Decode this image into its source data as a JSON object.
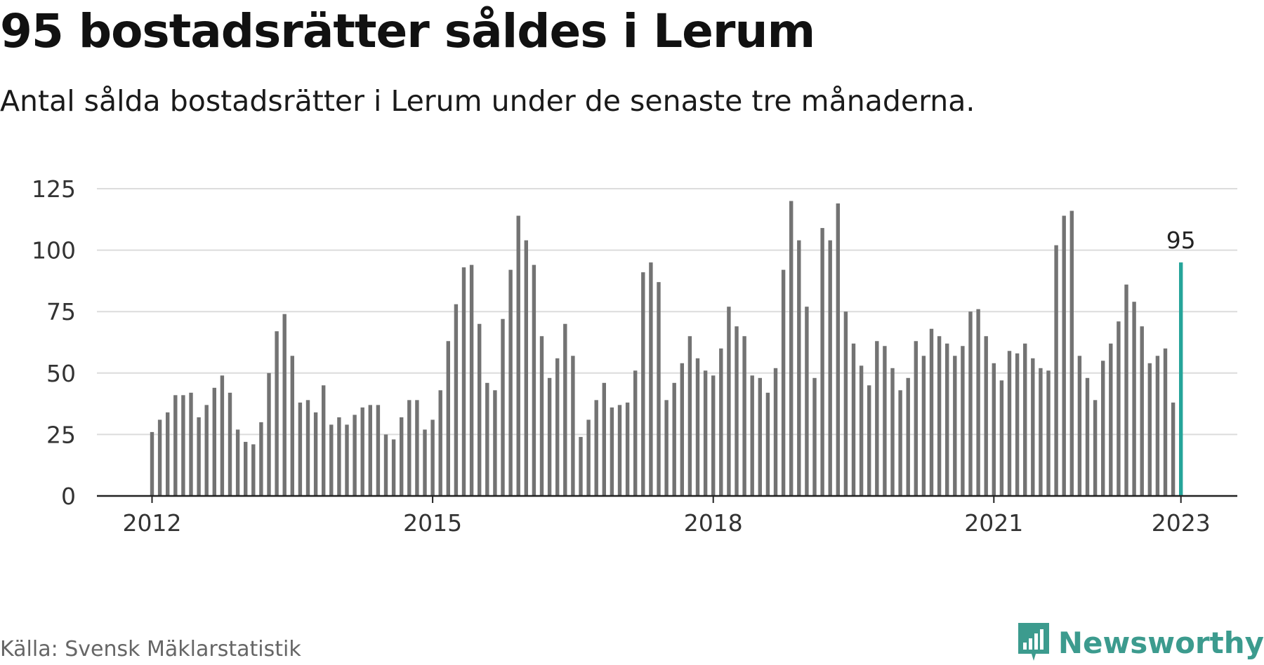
{
  "title": "95 bostadsrätter såldes i Lerum",
  "subtitle": "Antal sålda bostadsrätter i Lerum under de senaste tre månaderna.",
  "source": "Källa: Svensk Mäklarstatistik",
  "brand": {
    "name": "Newsworthy",
    "icon": "newsworthy-logo-icon"
  },
  "colors": {
    "bar": "#737373",
    "highlight": "#26a59a",
    "grid": "#dcdcdc",
    "axis": "#222222",
    "brand": "#3c9b8e"
  },
  "chart_data": {
    "type": "bar",
    "x_start": "2012-01",
    "x_ticks": [
      "2012",
      "2015",
      "2018",
      "2021",
      "2023"
    ],
    "y_ticks": [
      "0",
      "25",
      "50",
      "75",
      "100",
      "125"
    ],
    "ylim": [
      0,
      125
    ],
    "grid": true,
    "annotation": "95",
    "values": [
      26,
      31,
      34,
      41,
      41,
      42,
      32,
      37,
      44,
      49,
      42,
      27,
      22,
      21,
      30,
      50,
      67,
      74,
      57,
      38,
      39,
      34,
      45,
      29,
      32,
      29,
      33,
      36,
      37,
      37,
      25,
      23,
      32,
      39,
      39,
      27,
      31,
      43,
      63,
      78,
      93,
      94,
      70,
      46,
      43,
      72,
      92,
      114,
      104,
      94,
      65,
      48,
      56,
      70,
      57,
      24,
      31,
      39,
      46,
      36,
      37,
      38,
      51,
      91,
      95,
      87,
      39,
      46,
      54,
      65,
      56,
      51,
      49,
      60,
      77,
      69,
      65,
      49,
      48,
      42,
      52,
      92,
      120,
      104,
      77,
      48,
      109,
      104,
      119,
      75,
      62,
      53,
      45,
      63,
      61,
      52,
      43,
      48,
      63,
      57,
      68,
      65,
      62,
      57,
      61,
      75,
      76,
      65,
      54,
      47,
      59,
      58,
      62,
      56,
      52,
      51,
      102,
      114,
      116,
      57,
      48,
      39,
      55,
      62,
      71,
      86,
      79,
      69,
      54,
      57,
      60,
      38,
      95
    ]
  }
}
